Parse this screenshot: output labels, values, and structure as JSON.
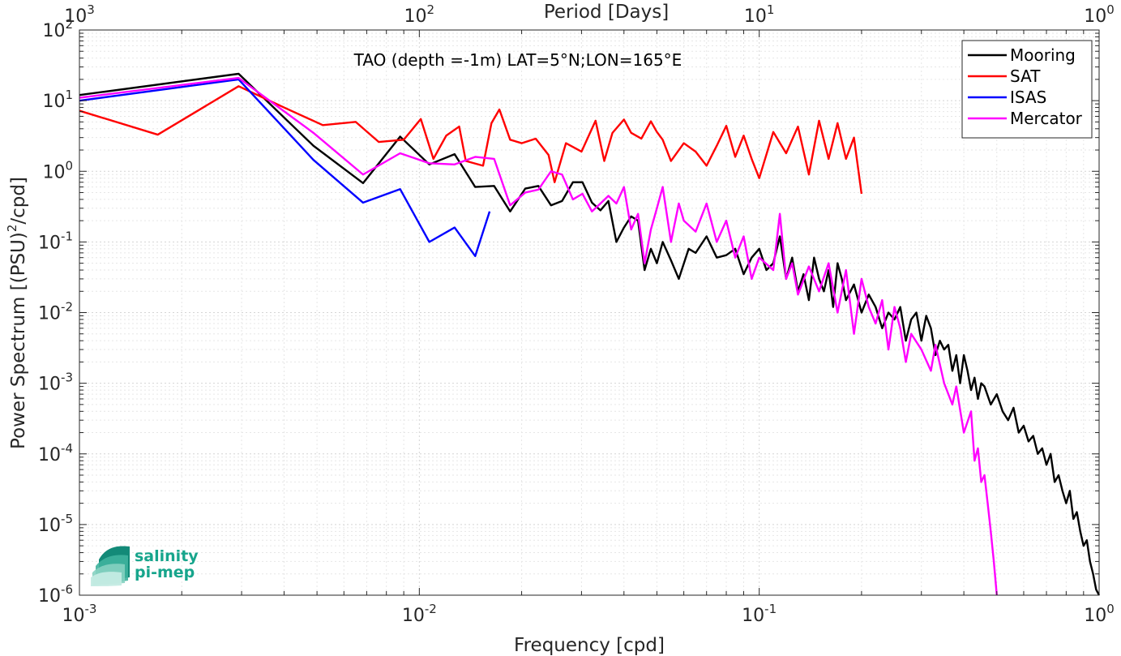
{
  "chart_data": {
    "type": "line",
    "annotation": "TAO (depth =-1m) LAT=5°N;LON=165°E",
    "xlabel": "Frequency [cpd]",
    "ylabel": "Power Spectrum [(PSU)",
    "ylabel_sup": "2",
    "ylabel_tail": "/cpd]",
    "top_xlabel": "Period [Days]",
    "x_scale": "log",
    "y_scale": "log",
    "xlim": [
      0.001,
      1
    ],
    "ylim": [
      1e-06,
      100
    ],
    "grid": true,
    "legend_position": "top-right",
    "x_ticks": [
      {
        "value": 0.001,
        "base": "10",
        "exp": "-3"
      },
      {
        "value": 0.01,
        "base": "10",
        "exp": "-2"
      },
      {
        "value": 0.1,
        "base": "10",
        "exp": "-1"
      },
      {
        "value": 1,
        "base": "10",
        "exp": "0"
      }
    ],
    "top_ticks": [
      {
        "value": 0.001,
        "base": "10",
        "exp": "3"
      },
      {
        "value": 0.01,
        "base": "10",
        "exp": "2"
      },
      {
        "value": 0.1,
        "base": "10",
        "exp": "1"
      },
      {
        "value": 1,
        "base": "10",
        "exp": "0"
      }
    ],
    "y_ticks": [
      {
        "value": 100,
        "base": "10",
        "exp": "2"
      },
      {
        "value": 10,
        "base": "10",
        "exp": "1"
      },
      {
        "value": 1,
        "base": "10",
        "exp": "0"
      },
      {
        "value": 0.1,
        "base": "10",
        "exp": "-1"
      },
      {
        "value": 0.01,
        "base": "10",
        "exp": "-2"
      },
      {
        "value": 0.001,
        "base": "10",
        "exp": "-3"
      },
      {
        "value": 0.0001,
        "base": "10",
        "exp": "-4"
      },
      {
        "value": 1e-05,
        "base": "10",
        "exp": "-5"
      },
      {
        "value": 1e-06,
        "base": "10",
        "exp": "-6"
      }
    ],
    "series": [
      {
        "name": "Mooring",
        "color": "#000000",
        "points": [
          [
            0.001,
            12
          ],
          [
            0.00294,
            24
          ],
          [
            0.00488,
            2.3
          ],
          [
            0.00683,
            0.68
          ],
          [
            0.00878,
            3.1
          ],
          [
            0.0107,
            1.25
          ],
          [
            0.0127,
            1.75
          ],
          [
            0.0146,
            0.6
          ],
          [
            0.0166,
            0.62
          ],
          [
            0.0185,
            0.27
          ],
          [
            0.0205,
            0.57
          ],
          [
            0.0224,
            0.62
          ],
          [
            0.0244,
            0.33
          ],
          [
            0.0263,
            0.38
          ],
          [
            0.0283,
            0.7
          ],
          [
            0.0302,
            0.7
          ],
          [
            0.0322,
            0.36
          ],
          [
            0.0341,
            0.28
          ],
          [
            0.036,
            0.38
          ],
          [
            0.038,
            0.1
          ],
          [
            0.04,
            0.16
          ],
          [
            0.042,
            0.23
          ],
          [
            0.044,
            0.2
          ],
          [
            0.046,
            0.04
          ],
          [
            0.048,
            0.08
          ],
          [
            0.05,
            0.05
          ],
          [
            0.052,
            0.1
          ],
          [
            0.055,
            0.055
          ],
          [
            0.058,
            0.03
          ],
          [
            0.062,
            0.08
          ],
          [
            0.065,
            0.07
          ],
          [
            0.07,
            0.12
          ],
          [
            0.075,
            0.06
          ],
          [
            0.08,
            0.065
          ],
          [
            0.085,
            0.08
          ],
          [
            0.09,
            0.035
          ],
          [
            0.095,
            0.06
          ],
          [
            0.1,
            0.08
          ],
          [
            0.105,
            0.04
          ],
          [
            0.11,
            0.05
          ],
          [
            0.115,
            0.12
          ],
          [
            0.12,
            0.03
          ],
          [
            0.125,
            0.06
          ],
          [
            0.13,
            0.02
          ],
          [
            0.135,
            0.035
          ],
          [
            0.14,
            0.015
          ],
          [
            0.145,
            0.06
          ],
          [
            0.15,
            0.03
          ],
          [
            0.155,
            0.02
          ],
          [
            0.16,
            0.04
          ],
          [
            0.165,
            0.012
          ],
          [
            0.17,
            0.05
          ],
          [
            0.175,
            0.03
          ],
          [
            0.18,
            0.015
          ],
          [
            0.19,
            0.025
          ],
          [
            0.2,
            0.01
          ],
          [
            0.21,
            0.018
          ],
          [
            0.22,
            0.012
          ],
          [
            0.23,
            0.006
          ],
          [
            0.24,
            0.01
          ],
          [
            0.25,
            0.008
          ],
          [
            0.26,
            0.012
          ],
          [
            0.27,
            0.004
          ],
          [
            0.28,
            0.008
          ],
          [
            0.29,
            0.01
          ],
          [
            0.3,
            0.004
          ],
          [
            0.31,
            0.009
          ],
          [
            0.32,
            0.006
          ],
          [
            0.33,
            0.0025
          ],
          [
            0.34,
            0.004
          ],
          [
            0.35,
            0.003
          ],
          [
            0.36,
            0.0035
          ],
          [
            0.37,
            0.0015
          ],
          [
            0.38,
            0.0025
          ],
          [
            0.39,
            0.001
          ],
          [
            0.4,
            0.0025
          ],
          [
            0.41,
            0.0015
          ],
          [
            0.42,
            0.0008
          ],
          [
            0.43,
            0.0012
          ],
          [
            0.44,
            0.0006
          ],
          [
            0.45,
            0.001
          ],
          [
            0.46,
            0.0009
          ],
          [
            0.48,
            0.0005
          ],
          [
            0.5,
            0.0007
          ],
          [
            0.52,
            0.0004
          ],
          [
            0.54,
            0.0003
          ],
          [
            0.56,
            0.00045
          ],
          [
            0.58,
            0.0002
          ],
          [
            0.6,
            0.00025
          ],
          [
            0.62,
            0.00015
          ],
          [
            0.64,
            0.00018
          ],
          [
            0.66,
            0.0001
          ],
          [
            0.68,
            0.00012
          ],
          [
            0.7,
            7e-05
          ],
          [
            0.72,
            0.0001
          ],
          [
            0.74,
            4e-05
          ],
          [
            0.76,
            5e-05
          ],
          [
            0.78,
            3e-05
          ],
          [
            0.8,
            2e-05
          ],
          [
            0.82,
            3e-05
          ],
          [
            0.84,
            1.2e-05
          ],
          [
            0.86,
            1.5e-05
          ],
          [
            0.88,
            8e-06
          ],
          [
            0.9,
            5e-06
          ],
          [
            0.92,
            6e-06
          ],
          [
            0.94,
            3e-06
          ],
          [
            0.96,
            2e-06
          ],
          [
            0.98,
            1.2e-06
          ],
          [
            1.0,
            1e-06
          ]
        ]
      },
      {
        "name": "SAT",
        "color": "#ff0000",
        "points": [
          [
            0.001,
            7.2
          ],
          [
            0.0017,
            3.3
          ],
          [
            0.00294,
            16
          ],
          [
            0.004,
            8
          ],
          [
            0.0052,
            4.5
          ],
          [
            0.0065,
            5
          ],
          [
            0.0076,
            2.6
          ],
          [
            0.009,
            2.8
          ],
          [
            0.0101,
            5.5
          ],
          [
            0.011,
            1.5
          ],
          [
            0.012,
            3.2
          ],
          [
            0.0131,
            4.3
          ],
          [
            0.0137,
            1.4
          ],
          [
            0.0154,
            1.2
          ],
          [
            0.0163,
            4.8
          ],
          [
            0.0172,
            7.5
          ],
          [
            0.0185,
            2.8
          ],
          [
            0.02,
            2.5
          ],
          [
            0.022,
            2.9
          ],
          [
            0.024,
            1.7
          ],
          [
            0.025,
            0.7
          ],
          [
            0.027,
            2.5
          ],
          [
            0.03,
            1.9
          ],
          [
            0.033,
            5.2
          ],
          [
            0.035,
            1.4
          ],
          [
            0.037,
            3.5
          ],
          [
            0.04,
            5.4
          ],
          [
            0.042,
            3.5
          ],
          [
            0.045,
            2.9
          ],
          [
            0.048,
            5.1
          ],
          [
            0.05,
            3.6
          ],
          [
            0.052,
            2.8
          ],
          [
            0.055,
            1.4
          ],
          [
            0.06,
            2.5
          ],
          [
            0.065,
            1.9
          ],
          [
            0.07,
            1.2
          ],
          [
            0.075,
            2.3
          ],
          [
            0.08,
            4.4
          ],
          [
            0.085,
            1.6
          ],
          [
            0.09,
            3.2
          ],
          [
            0.095,
            1.5
          ],
          [
            0.1,
            0.8
          ],
          [
            0.11,
            3.6
          ],
          [
            0.12,
            1.8
          ],
          [
            0.13,
            4.3
          ],
          [
            0.14,
            0.9
          ],
          [
            0.15,
            5.2
          ],
          [
            0.16,
            1.5
          ],
          [
            0.17,
            4.8
          ],
          [
            0.18,
            1.5
          ],
          [
            0.19,
            3
          ],
          [
            0.2,
            0.48
          ]
        ]
      },
      {
        "name": "ISAS",
        "color": "#0000ff",
        "points": [
          [
            0.001,
            10
          ],
          [
            0.00294,
            20
          ],
          [
            0.00488,
            1.45
          ],
          [
            0.00683,
            0.36
          ],
          [
            0.00878,
            0.56
          ],
          [
            0.0107,
            0.1
          ],
          [
            0.0127,
            0.16
          ],
          [
            0.0146,
            0.063
          ],
          [
            0.0161,
            0.27
          ]
        ]
      },
      {
        "name": "Mercator",
        "color": "#ff00ff",
        "points": [
          [
            0.001,
            11
          ],
          [
            0.00294,
            21
          ],
          [
            0.00488,
            3.5
          ],
          [
            0.00683,
            0.9
          ],
          [
            0.00878,
            1.8
          ],
          [
            0.0107,
            1.3
          ],
          [
            0.0127,
            1.25
          ],
          [
            0.0146,
            1.6
          ],
          [
            0.0166,
            1.5
          ],
          [
            0.0185,
            0.33
          ],
          [
            0.0205,
            0.5
          ],
          [
            0.0224,
            0.55
          ],
          [
            0.0244,
            1
          ],
          [
            0.0263,
            0.9
          ],
          [
            0.0283,
            0.4
          ],
          [
            0.0302,
            0.48
          ],
          [
            0.0322,
            0.27
          ],
          [
            0.0341,
            0.35
          ],
          [
            0.036,
            0.45
          ],
          [
            0.038,
            0.35
          ],
          [
            0.04,
            0.6
          ],
          [
            0.042,
            0.15
          ],
          [
            0.044,
            0.25
          ],
          [
            0.046,
            0.05
          ],
          [
            0.048,
            0.15
          ],
          [
            0.05,
            0.3
          ],
          [
            0.052,
            0.6
          ],
          [
            0.055,
            0.1
          ],
          [
            0.058,
            0.35
          ],
          [
            0.06,
            0.2
          ],
          [
            0.065,
            0.14
          ],
          [
            0.07,
            0.35
          ],
          [
            0.075,
            0.1
          ],
          [
            0.08,
            0.2
          ],
          [
            0.085,
            0.06
          ],
          [
            0.09,
            0.12
          ],
          [
            0.095,
            0.03
          ],
          [
            0.1,
            0.06
          ],
          [
            0.11,
            0.04
          ],
          [
            0.115,
            0.25
          ],
          [
            0.12,
            0.03
          ],
          [
            0.125,
            0.05
          ],
          [
            0.13,
            0.018
          ],
          [
            0.14,
            0.045
          ],
          [
            0.15,
            0.02
          ],
          [
            0.16,
            0.05
          ],
          [
            0.17,
            0.01
          ],
          [
            0.18,
            0.04
          ],
          [
            0.19,
            0.005
          ],
          [
            0.2,
            0.03
          ],
          [
            0.21,
            0.012
          ],
          [
            0.22,
            0.007
          ],
          [
            0.23,
            0.015
          ],
          [
            0.24,
            0.003
          ],
          [
            0.25,
            0.012
          ],
          [
            0.26,
            0.006
          ],
          [
            0.27,
            0.002
          ],
          [
            0.28,
            0.005
          ],
          [
            0.3,
            0.003
          ],
          [
            0.32,
            0.0015
          ],
          [
            0.33,
            0.0035
          ],
          [
            0.35,
            0.001
          ],
          [
            0.37,
            0.0005
          ],
          [
            0.38,
            0.0009
          ],
          [
            0.4,
            0.0002
          ],
          [
            0.42,
            0.0004
          ],
          [
            0.43,
            8e-05
          ],
          [
            0.44,
            0.00012
          ],
          [
            0.45,
            4e-05
          ],
          [
            0.46,
            5e-05
          ],
          [
            0.47,
            2e-05
          ],
          [
            0.48,
            8e-06
          ],
          [
            0.49,
            3e-06
          ],
          [
            0.5,
            1e-06
          ]
        ]
      }
    ]
  },
  "logo": {
    "line1": "salinity",
    "line2": "pi-mep"
  }
}
